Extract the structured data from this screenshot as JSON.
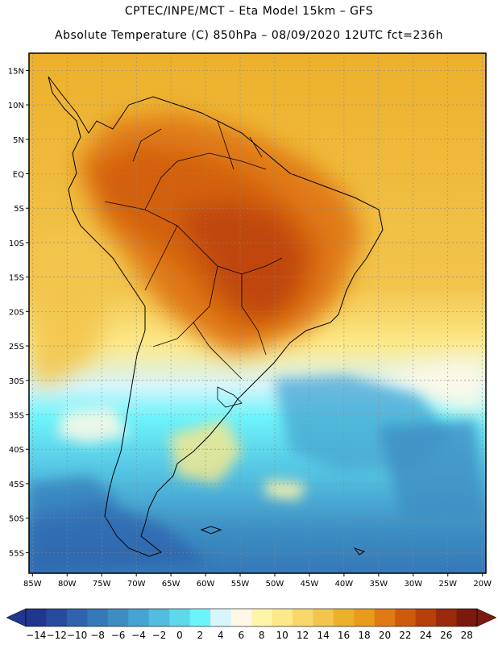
{
  "header": {
    "line1": "CPTEC/INPE/MCT –  Eta Model 15km – GFS",
    "line2": "Absolute Temperature (C) 850hPa – 08/09/2020 12UTC fct=236h"
  },
  "axes": {
    "lat_labels": [
      "15N",
      "10N",
      "5N",
      "EQ",
      "5S",
      "10S",
      "15S",
      "20S",
      "25S",
      "30S",
      "35S",
      "40S",
      "45S",
      "50S",
      "55S"
    ],
    "lat_values": [
      15,
      10,
      5,
      0,
      -5,
      -10,
      -15,
      -20,
      -25,
      -30,
      -35,
      -40,
      -45,
      -50,
      -55
    ],
    "lon_labels": [
      "85W",
      "80W",
      "75W",
      "70W",
      "65W",
      "60W",
      "55W",
      "50W",
      "45W",
      "40W",
      "35W",
      "30W",
      "25W",
      "20W"
    ],
    "lon_values": [
      -85,
      -80,
      -75,
      -70,
      -65,
      -60,
      -55,
      -50,
      -45,
      -40,
      -35,
      -30,
      -25,
      -20
    ],
    "lat_range": [
      -58,
      17.5
    ],
    "lon_range": [
      -85.5,
      -19.5
    ]
  },
  "colorbar": {
    "labels": [
      "-14",
      "-12",
      "-10",
      "-8",
      "-6",
      "-4",
      "-2",
      "0",
      "2",
      "4",
      "6",
      "8",
      "10",
      "12",
      "14",
      "16",
      "18",
      "20",
      "22",
      "24",
      "26",
      "28"
    ],
    "colors": [
      "#20368f",
      "#274b9e",
      "#2f63ad",
      "#3479b8",
      "#3d8dc3",
      "#45a4d1",
      "#52bddf",
      "#5fd8ec",
      "#6df4fb",
      "#d6f5fc",
      "#fff8e6",
      "#fff4a8",
      "#fde98a",
      "#f8d86b",
      "#f2c54d",
      "#edb02b",
      "#e99b1a",
      "#e07a12",
      "#cf5a0c",
      "#b83e0a",
      "#9a2a0c",
      "#7a1a0e"
    ],
    "left_arrow_color": "#20368f",
    "right_arrow_color": "#7a1a0e"
  },
  "background": {
    "ocean_north": "#edb02b",
    "land_warm": "#e07a12",
    "land_hot": "#cf5a0c",
    "land_core": "#b83e0a",
    "cool_band": "#6df4fb",
    "cold_band": "#45a4d1",
    "deep_cold": "#2f63ad"
  }
}
